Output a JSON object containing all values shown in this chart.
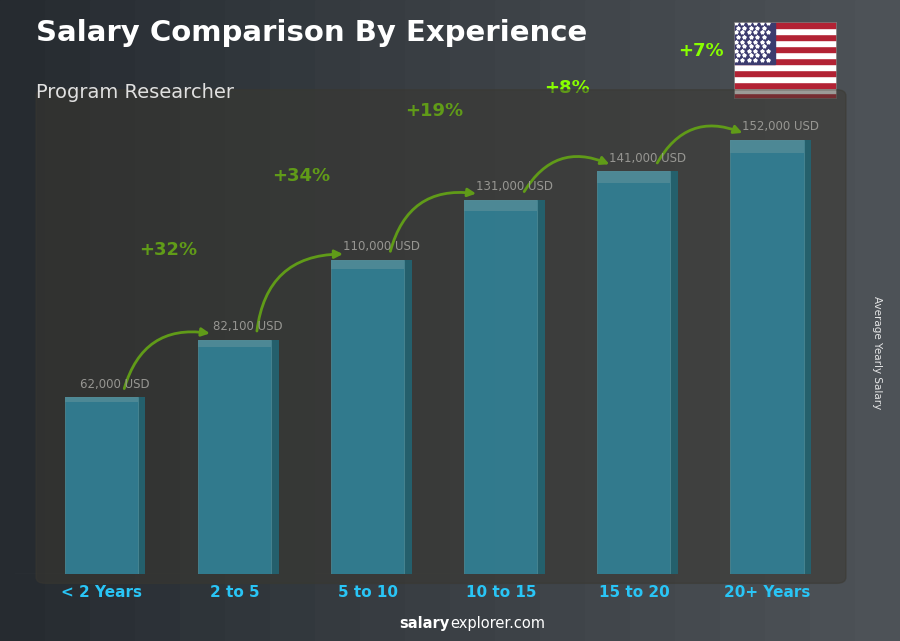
{
  "title": "Salary Comparison By Experience",
  "subtitle": "Program Researcher",
  "categories": [
    "< 2 Years",
    "2 to 5",
    "5 to 10",
    "10 to 15",
    "15 to 20",
    "20+ Years"
  ],
  "values": [
    62000,
    82100,
    110000,
    131000,
    141000,
    152000
  ],
  "value_labels": [
    "62,000 USD",
    "82,100 USD",
    "110,000 USD",
    "131,000 USD",
    "141,000 USD",
    "152,000 USD"
  ],
  "pct_changes": [
    "+32%",
    "+34%",
    "+19%",
    "+8%",
    "+7%"
  ],
  "bar_color": "#29c5f6",
  "bar_highlight": "#6de0ff",
  "bar_dark": "#0a7a9e",
  "bar_side": "#0d8db0",
  "pct_color": "#88ff00",
  "value_color": "#ffffff",
  "title_color": "#ffffff",
  "subtitle_color": "#e0e0e0",
  "xticklabel_color": "#29c5f6",
  "watermark_bold": "salary",
  "watermark_normal": "explorer.com",
  "watermark_color": "#ffffff",
  "ylabel": "Average Yearly Salary",
  "ylim": [
    0,
    185000
  ],
  "bar_width": 0.55,
  "bg_dark": "#1a1a1a",
  "bg_mid": "#2d2d2d"
}
